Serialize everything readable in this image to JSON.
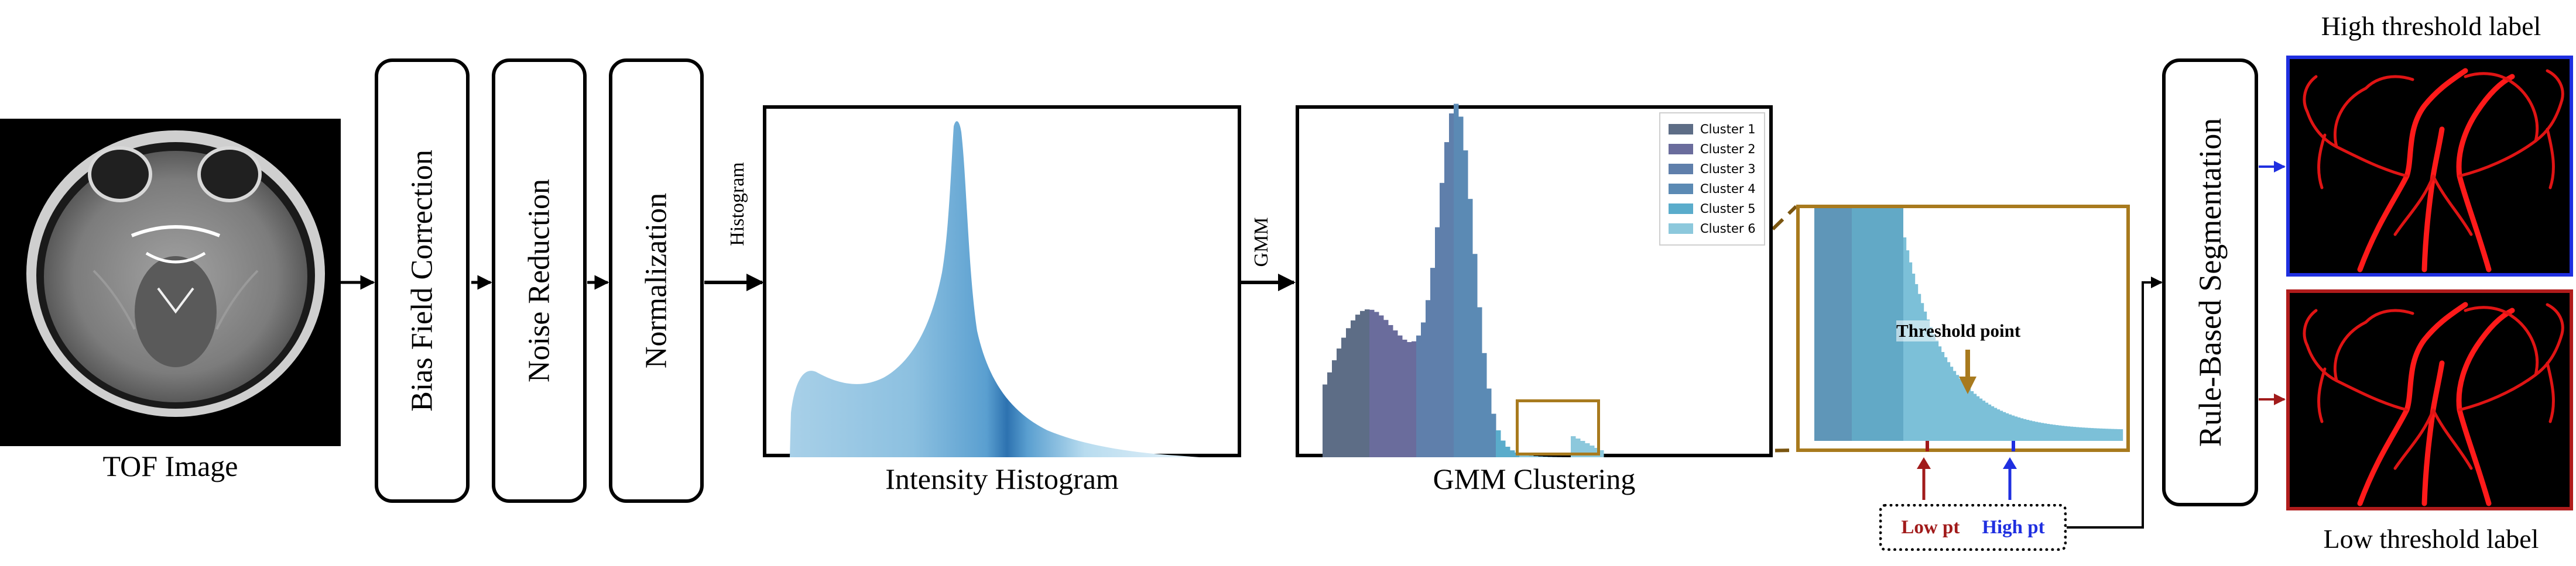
{
  "input": {
    "caption": "TOF Image"
  },
  "steps": [
    {
      "label": "Bias Field Correction"
    },
    {
      "label": "Noise Reduction"
    },
    {
      "label": "Normalization"
    }
  ],
  "arrow_labels": {
    "histogram": "Histogram",
    "gmm": "GMM"
  },
  "histogram_panel": {
    "caption": "Intensity Histogram"
  },
  "gmm_panel": {
    "caption": "GMM Clustering",
    "legend": [
      {
        "name": "Cluster 1",
        "color": "#5d6d86"
      },
      {
        "name": "Cluster 2",
        "color": "#6a6c9c"
      },
      {
        "name": "Cluster 3",
        "color": "#5f7fab"
      },
      {
        "name": "Cluster 4",
        "color": "#5b8ab4"
      },
      {
        "name": "Cluster 5",
        "color": "#5aaccb"
      },
      {
        "name": "Cluster 6",
        "color": "#8cc8dc"
      }
    ]
  },
  "zoom_panel": {
    "threshold_label": "Threshold point",
    "low_label": "Low pt",
    "high_label": "High pt",
    "low_color": "#a11b1b",
    "high_color": "#1f2fe0",
    "accent_color": "#a87a1e"
  },
  "segmentation": {
    "label": "Rule-Based Segmentation"
  },
  "outputs": {
    "high_caption": "High threshold label",
    "low_caption": "Low threshold label",
    "high_border": "#1f2fe0",
    "low_border": "#b01c1c"
  }
}
